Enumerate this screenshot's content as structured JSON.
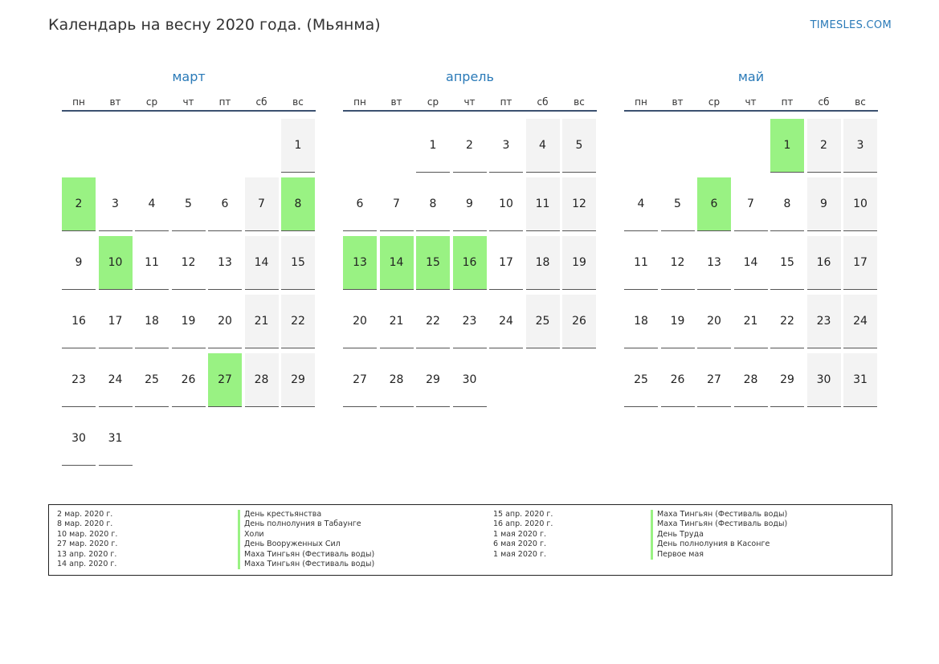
{
  "header": {
    "title": "Календарь на весну 2020 года. (Мьянма)",
    "site": "TIMESLES.COM"
  },
  "colors": {
    "holiday": "#99f283",
    "weekend": "#f3f3f3",
    "accent": "#2a7ab8",
    "header_rule": "#3b5170"
  },
  "weekdays": [
    "пн",
    "вт",
    "ср",
    "чт",
    "пт",
    "сб",
    "вс"
  ],
  "months": [
    {
      "name": "март",
      "start_weekday": 6,
      "days": 31,
      "holidays": [
        2,
        8,
        10,
        27
      ]
    },
    {
      "name": "апрель",
      "start_weekday": 2,
      "days": 30,
      "holidays": [
        13,
        14,
        15,
        16
      ]
    },
    {
      "name": "май",
      "start_weekday": 4,
      "days": 31,
      "holidays": [
        1,
        6
      ]
    }
  ],
  "legend": [
    {
      "date": "2 мар. 2020 г.",
      "name": "День крестьянства"
    },
    {
      "date": "8 мар. 2020 г.",
      "name": "День полнолуния в Табаунге"
    },
    {
      "date": "10 мар. 2020 г.",
      "name": "Холи"
    },
    {
      "date": "27 мар. 2020 г.",
      "name": "День Вооруженных Сил"
    },
    {
      "date": "13 апр. 2020 г.",
      "name": "Маха Тингьян (Фестиваль воды)"
    },
    {
      "date": "14 апр. 2020 г.",
      "name": "Маха Тингьян (Фестиваль воды)"
    },
    {
      "date": "15 апр. 2020 г.",
      "name": "Маха Тингьян (Фестиваль воды)"
    },
    {
      "date": "16 апр. 2020 г.",
      "name": "Маха Тингьян (Фестиваль воды)"
    },
    {
      "date": "1 мая 2020 г.",
      "name": "День Труда"
    },
    {
      "date": "6 мая 2020 г.",
      "name": "День полнолуния в Касонге"
    },
    {
      "date": "1 мая 2020 г.",
      "name": "Первое мая"
    }
  ]
}
